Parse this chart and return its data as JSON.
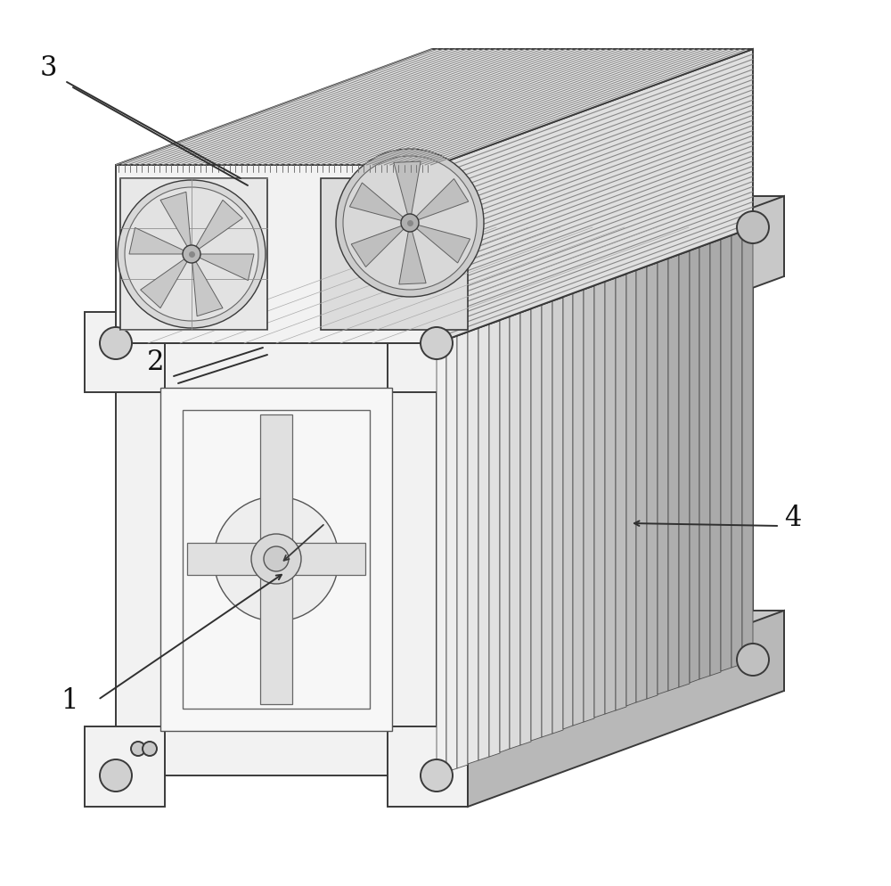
{
  "background_color": "#ffffff",
  "fig_width": 10.0,
  "fig_height": 9.94,
  "dpi": 100,
  "label_fontsize": 22,
  "lw_main": 1.4,
  "lw_thin": 0.7,
  "c_edge": "#3a3a3a",
  "c_light": "#f2f2f2",
  "c_mid": "#e0e0e0",
  "c_dark": "#c8c8c8",
  "c_darker": "#b8b8b8",
  "c_white": "#fafafa"
}
